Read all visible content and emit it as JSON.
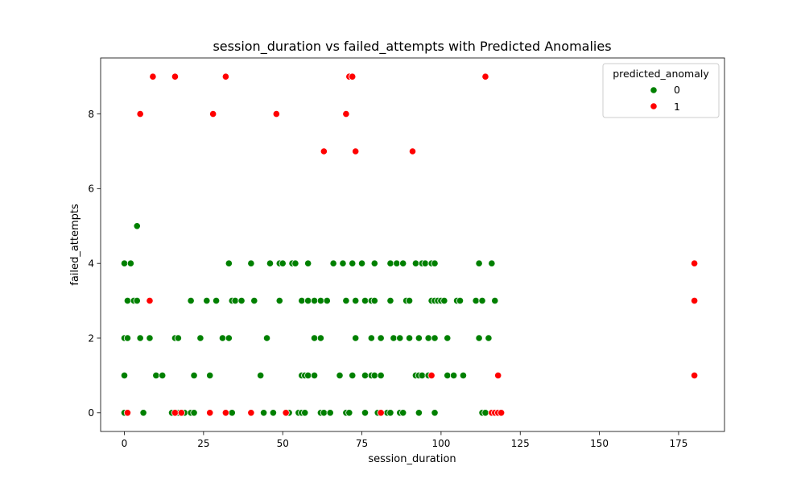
{
  "chart_data": {
    "type": "scatter",
    "title": "session_duration vs failed_attempts with Predicted Anomalies",
    "xlabel": "session_duration",
    "ylabel": "failed_attempts",
    "xlim": [
      -7.5,
      189.5
    ],
    "ylim": [
      -0.5,
      9.5
    ],
    "xticks": [
      0,
      25,
      50,
      75,
      100,
      125,
      150,
      175
    ],
    "yticks": [
      0,
      2,
      4,
      6,
      8
    ],
    "grid": false,
    "legend": {
      "title": "predicted_anomaly",
      "position": "top-right",
      "entries": [
        {
          "label": "0",
          "color": "#008000"
        },
        {
          "label": "1",
          "color": "#ff0000"
        }
      ]
    },
    "series": [
      {
        "name": "0",
        "color": "#008000",
        "points": [
          [
            0,
            0
          ],
          [
            6,
            0
          ],
          [
            15,
            0
          ],
          [
            17,
            0
          ],
          [
            19,
            0
          ],
          [
            21,
            0
          ],
          [
            22,
            0
          ],
          [
            34,
            0
          ],
          [
            44,
            0
          ],
          [
            47,
            0
          ],
          [
            52,
            0
          ],
          [
            55,
            0
          ],
          [
            56,
            0
          ],
          [
            57,
            0
          ],
          [
            62,
            0
          ],
          [
            63,
            0
          ],
          [
            65,
            0
          ],
          [
            70,
            0
          ],
          [
            71,
            0
          ],
          [
            76,
            0
          ],
          [
            80,
            0
          ],
          [
            83,
            0
          ],
          [
            84,
            0
          ],
          [
            87,
            0
          ],
          [
            88,
            0
          ],
          [
            93,
            0
          ],
          [
            98,
            0
          ],
          [
            113,
            0
          ],
          [
            114,
            0
          ],
          [
            0,
            1
          ],
          [
            10,
            1
          ],
          [
            12,
            1
          ],
          [
            22,
            1
          ],
          [
            27,
            1
          ],
          [
            43,
            1
          ],
          [
            56,
            1
          ],
          [
            57,
            1
          ],
          [
            58,
            1
          ],
          [
            60,
            1
          ],
          [
            68,
            1
          ],
          [
            72,
            1
          ],
          [
            76,
            1
          ],
          [
            78,
            1
          ],
          [
            79,
            1
          ],
          [
            81,
            1
          ],
          [
            92,
            1
          ],
          [
            93,
            1
          ],
          [
            94,
            1
          ],
          [
            96,
            1
          ],
          [
            102,
            1
          ],
          [
            104,
            1
          ],
          [
            107,
            1
          ],
          [
            0,
            2
          ],
          [
            1,
            2
          ],
          [
            5,
            2
          ],
          [
            8,
            2
          ],
          [
            16,
            2
          ],
          [
            17,
            2
          ],
          [
            24,
            2
          ],
          [
            31,
            2
          ],
          [
            33,
            2
          ],
          [
            45,
            2
          ],
          [
            60,
            2
          ],
          [
            62,
            2
          ],
          [
            73,
            2
          ],
          [
            78,
            2
          ],
          [
            81,
            2
          ],
          [
            85,
            2
          ],
          [
            87,
            2
          ],
          [
            90,
            2
          ],
          [
            93,
            2
          ],
          [
            96,
            2
          ],
          [
            98,
            2
          ],
          [
            102,
            2
          ],
          [
            112,
            2
          ],
          [
            115,
            2
          ],
          [
            1,
            3
          ],
          [
            3,
            3
          ],
          [
            4,
            3
          ],
          [
            21,
            3
          ],
          [
            26,
            3
          ],
          [
            29,
            3
          ],
          [
            34,
            3
          ],
          [
            35,
            3
          ],
          [
            37,
            3
          ],
          [
            41,
            3
          ],
          [
            49,
            3
          ],
          [
            56,
            3
          ],
          [
            58,
            3
          ],
          [
            60,
            3
          ],
          [
            62,
            3
          ],
          [
            64,
            3
          ],
          [
            70,
            3
          ],
          [
            73,
            3
          ],
          [
            76,
            3
          ],
          [
            78,
            3
          ],
          [
            79,
            3
          ],
          [
            84,
            3
          ],
          [
            89,
            3
          ],
          [
            90,
            3
          ],
          [
            97,
            3
          ],
          [
            98,
            3
          ],
          [
            99,
            3
          ],
          [
            100,
            3
          ],
          [
            101,
            3
          ],
          [
            105,
            3
          ],
          [
            106,
            3
          ],
          [
            111,
            3
          ],
          [
            113,
            3
          ],
          [
            117,
            3
          ],
          [
            0,
            4
          ],
          [
            2,
            4
          ],
          [
            33,
            4
          ],
          [
            40,
            4
          ],
          [
            46,
            4
          ],
          [
            49,
            4
          ],
          [
            50,
            4
          ],
          [
            53,
            4
          ],
          [
            54,
            4
          ],
          [
            58,
            4
          ],
          [
            66,
            4
          ],
          [
            69,
            4
          ],
          [
            72,
            4
          ],
          [
            75,
            4
          ],
          [
            79,
            4
          ],
          [
            84,
            4
          ],
          [
            86,
            4
          ],
          [
            88,
            4
          ],
          [
            92,
            4
          ],
          [
            94,
            4
          ],
          [
            95,
            4
          ],
          [
            97,
            4
          ],
          [
            98,
            4
          ],
          [
            112,
            4
          ],
          [
            116,
            4
          ],
          [
            4,
            5
          ]
        ]
      },
      {
        "name": "1",
        "color": "#ff0000",
        "points": [
          [
            1,
            0
          ],
          [
            16,
            0
          ],
          [
            18,
            0
          ],
          [
            27,
            0
          ],
          [
            32,
            0
          ],
          [
            40,
            0
          ],
          [
            51,
            0
          ],
          [
            81,
            0
          ],
          [
            116,
            0
          ],
          [
            117,
            0
          ],
          [
            118,
            0
          ],
          [
            119,
            0
          ],
          [
            97,
            1
          ],
          [
            118,
            1
          ],
          [
            180,
            1
          ],
          [
            8,
            3
          ],
          [
            180,
            3
          ],
          [
            180,
            4
          ],
          [
            63,
            7
          ],
          [
            73,
            7
          ],
          [
            91,
            7
          ],
          [
            5,
            8
          ],
          [
            28,
            8
          ],
          [
            48,
            8
          ],
          [
            70,
            8
          ],
          [
            9,
            9
          ],
          [
            16,
            9
          ],
          [
            32,
            9
          ],
          [
            71,
            9
          ],
          [
            72,
            9
          ],
          [
            114,
            9
          ]
        ]
      }
    ]
  }
}
